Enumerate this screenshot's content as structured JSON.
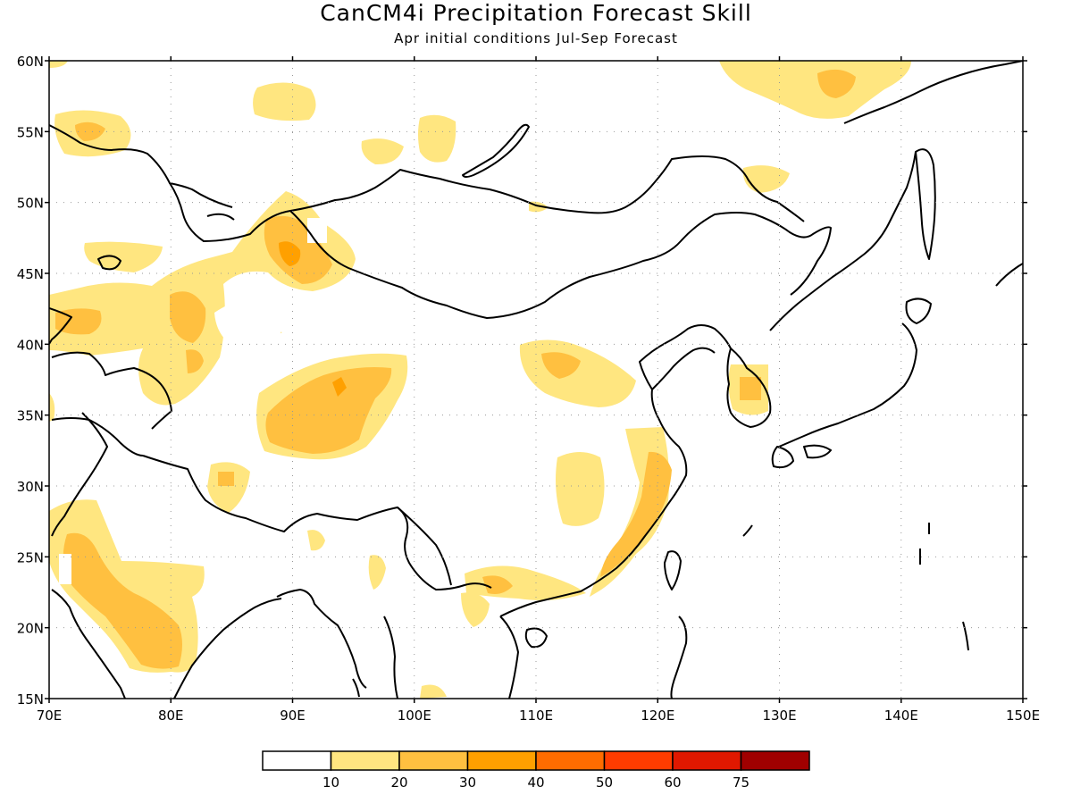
{
  "title": "CanCM4i Precipitation Forecast Skill",
  "subtitle": "Apr initial conditions  Jul-Sep Forecast",
  "map": {
    "lon_range": [
      70,
      150
    ],
    "lat_range": [
      15,
      60
    ],
    "lat_ticks": [
      "15N",
      "20N",
      "25N",
      "30N",
      "35N",
      "40N",
      "45N",
      "50N",
      "55N",
      "60N"
    ],
    "lon_ticks": [
      "70E",
      "80E",
      "90E",
      "100E",
      "110E",
      "120E",
      "130E",
      "140E",
      "150E"
    ],
    "grid": "dotted",
    "region": "East and South Asia"
  },
  "colorbar": {
    "colors": [
      "#ffffff",
      "#ffe680",
      "#ffc040",
      "#ffa000",
      "#ff6c00",
      "#ff3c00",
      "#e01800",
      "#a00000"
    ],
    "labels": [
      "10",
      "20",
      "30",
      "40",
      "50",
      "60",
      "75"
    ]
  }
}
